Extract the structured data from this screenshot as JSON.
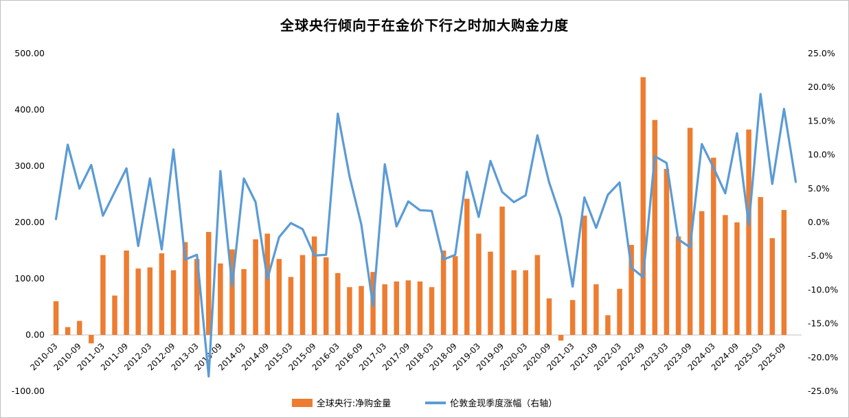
{
  "title": "全球央行倾向于在金价下行之时加大购金力度",
  "colors": {
    "bar": "#ED7D31",
    "line": "#5B9BD5",
    "axis_line": "#BFBFBF",
    "text": "#000000",
    "border": "#C0C0C0",
    "background": "#FFFFFF"
  },
  "legend": {
    "items": [
      {
        "label": "全球央行:净购金量",
        "marker": "bar-swatch"
      },
      {
        "label": "伦敦金现季度涨幅（右轴）",
        "marker": "line-swatch"
      }
    ]
  },
  "left_axis": {
    "ticks": [
      "500.00",
      "400.00",
      "300.00",
      "200.00",
      "100.00",
      "0.00",
      "-100.00"
    ],
    "min": -100,
    "max": 500
  },
  "right_axis": {
    "ticks": [
      "25.0%",
      "20.0%",
      "15.0%",
      "10.0%",
      "5.0%",
      "0.0%",
      "-5.0%",
      "-10.0%",
      "-15.0%",
      "-20.0%",
      "-25.0%"
    ],
    "min": -25,
    "max": 25
  },
  "chart_data": {
    "type": "bar",
    "subtype": "bar+line combo, dual axis",
    "title": "全球央行倾向于在金价下行之时加大购金力度",
    "xlabel": "",
    "ylabel_left": "",
    "ylabel_right": "",
    "left_ylim": [
      -100,
      500
    ],
    "right_ylim": [
      -25,
      25
    ],
    "grid": false,
    "legend_position": "bottom",
    "x": [
      "2010-03",
      "2010-06",
      "2010-09",
      "2010-12",
      "2011-03",
      "2011-06",
      "2011-09",
      "2011-12",
      "2012-03",
      "2012-06",
      "2012-09",
      "2012-12",
      "2013-03",
      "2013-06",
      "2013-09",
      "2013-12",
      "2014-03",
      "2014-06",
      "2014-09",
      "2014-12",
      "2015-03",
      "2015-06",
      "2015-09",
      "2015-12",
      "2016-03",
      "2016-06",
      "2016-09",
      "2016-12",
      "2017-03",
      "2017-06",
      "2017-09",
      "2017-12",
      "2018-03",
      "2018-06",
      "2018-09",
      "2018-12",
      "2019-03",
      "2019-06",
      "2019-09",
      "2019-12",
      "2020-03",
      "2020-06",
      "2020-09",
      "2020-12",
      "2021-03",
      "2021-06",
      "2021-09",
      "2021-12",
      "2022-03",
      "2022-06",
      "2022-09",
      "2022-12",
      "2023-03",
      "2023-06",
      "2023-09",
      "2023-12",
      "2024-03",
      "2024-06",
      "2024-09",
      "2024-12",
      "2025-03",
      "2025-06",
      "2025-09",
      "2025-12"
    ],
    "x_tick_labels": [
      "2010-03",
      "2010-09",
      "2011-03",
      "2011-09",
      "2012-03",
      "2012-09",
      "2013-03",
      "2013-09",
      "2014-03",
      "2014-09",
      "2015-03",
      "2015-09",
      "2016-03",
      "2016-09",
      "2017-03",
      "2017-09",
      "2018-03",
      "2018-09",
      "2019-03",
      "2019-09",
      "2020-03",
      "2020-09",
      "2021-03",
      "2021-09",
      "2022-03",
      "2022-09",
      "2023-03",
      "2023-09",
      "2024-03",
      "2024-09",
      "2025-03",
      "2025-09"
    ],
    "x_tick_every": 2,
    "series": [
      {
        "name": "全球央行:净购金量",
        "type": "bar",
        "axis": "left",
        "color": "#ED7D31",
        "values": [
          60,
          14,
          25,
          -15,
          142,
          70,
          150,
          118,
          120,
          145,
          115,
          165,
          135,
          183,
          127,
          152,
          117,
          170,
          180,
          135,
          103,
          142,
          175,
          138,
          110,
          85,
          87,
          112,
          90,
          95,
          97,
          95,
          85,
          150,
          140,
          242,
          180,
          148,
          228,
          115,
          115,
          142,
          65,
          -10,
          62,
          212,
          90,
          35,
          82,
          160,
          458,
          382,
          295,
          175,
          368,
          220,
          315,
          213,
          200,
          365,
          245,
          172,
          222,
          null
        ]
      },
      {
        "name": "伦敦金现季度涨幅（右轴）",
        "type": "line",
        "axis": "right",
        "color": "#5B9BD5",
        "values": [
          0.5,
          11.5,
          5.0,
          8.5,
          1.0,
          4.5,
          8.0,
          -3.5,
          6.5,
          -4.0,
          10.8,
          -5.5,
          -4.8,
          -22.8,
          7.6,
          -9.4,
          6.5,
          3.0,
          -8.4,
          -2.2,
          -0.1,
          -1.0,
          -4.9,
          -4.8,
          16.1,
          6.8,
          -0.3,
          -12.4,
          8.6,
          -0.6,
          3.1,
          1.8,
          1.7,
          -5.5,
          -4.8,
          7.5,
          0.8,
          9.1,
          4.5,
          3.0,
          4.0,
          12.9,
          5.9,
          0.7,
          -9.5,
          3.7,
          -0.8,
          4.1,
          5.9,
          -6.7,
          -8.1,
          9.8,
          8.8,
          -2.5,
          -3.7,
          11.6,
          8.1,
          4.3,
          13.2,
          -0.4,
          19.0,
          5.7,
          16.8,
          6.0
        ]
      }
    ]
  }
}
